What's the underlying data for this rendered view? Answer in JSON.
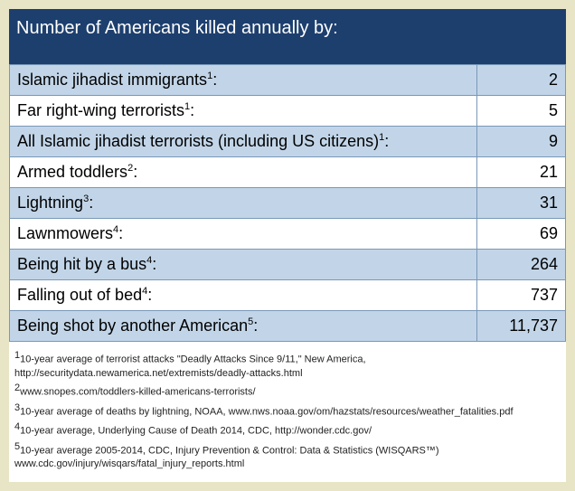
{
  "title": "Number of Americans killed annually by:",
  "colors": {
    "title_bg": "#1d3f6e",
    "title_text": "#ffffff",
    "cell_border": "#7a98b8",
    "row_shaded": "#c2d5e8",
    "row_unshaded": "#ffffff",
    "body_bg": "#e8e5c6",
    "footnote_text": "#222222"
  },
  "typography": {
    "title_fontsize": 20,
    "row_fontsize": 18,
    "footnote_fontsize": 11,
    "font_family": "Arial, Helvetica, sans-serif"
  },
  "layout": {
    "label_col_width_pct": 84,
    "value_col_width_pct": 16
  },
  "rows": [
    {
      "label": "Islamic jihadist immigrants",
      "sup": "1",
      "value": "2",
      "shaded": true
    },
    {
      "label": "Far right-wing terrorists",
      "sup": "1",
      "value": "5",
      "shaded": false
    },
    {
      "label": "All Islamic jihadist terrorists (including US citizens)",
      "sup": "1",
      "value": "9",
      "shaded": true
    },
    {
      "label": "Armed toddlers",
      "sup": "2",
      "value": "21",
      "shaded": false
    },
    {
      "label": "Lightning",
      "sup": "3",
      "value": "31",
      "shaded": true
    },
    {
      "label": "Lawnmowers",
      "sup": "4",
      "value": "69",
      "shaded": false
    },
    {
      "label": "Being hit by a bus",
      "sup": "4",
      "value": "264",
      "shaded": true
    },
    {
      "label": "Falling out of bed",
      "sup": "4",
      "value": "737",
      "shaded": false
    },
    {
      "label": "Being shot by another American",
      "sup": "5",
      "value": "11,737",
      "shaded": true
    }
  ],
  "footnotes": [
    {
      "sup": "1",
      "text": "10-year average of terrorist attacks  \"Deadly Attacks Since 9/11,\" New America, http://securitydata.newamerica.net/extremists/deadly-attacks.html"
    },
    {
      "sup": "2",
      "text": "www.snopes.com/toddlers-killed-americans-terrorists/"
    },
    {
      "sup": "3",
      "text": "10-year average of deaths by lightning, NOAA, www.nws.noaa.gov/om/hazstats/resources/weather_fatalities.pdf"
    },
    {
      "sup": "4",
      "text": "10-year average, Underlying Cause of Death 2014, CDC, http://wonder.cdc.gov/"
    },
    {
      "sup": "5",
      "text": "10-year average 2005-2014, CDC, Injury Prevention & Control: Data & Statistics (WISQARS™) www.cdc.gov/injury/wisqars/fatal_injury_reports.html"
    }
  ]
}
